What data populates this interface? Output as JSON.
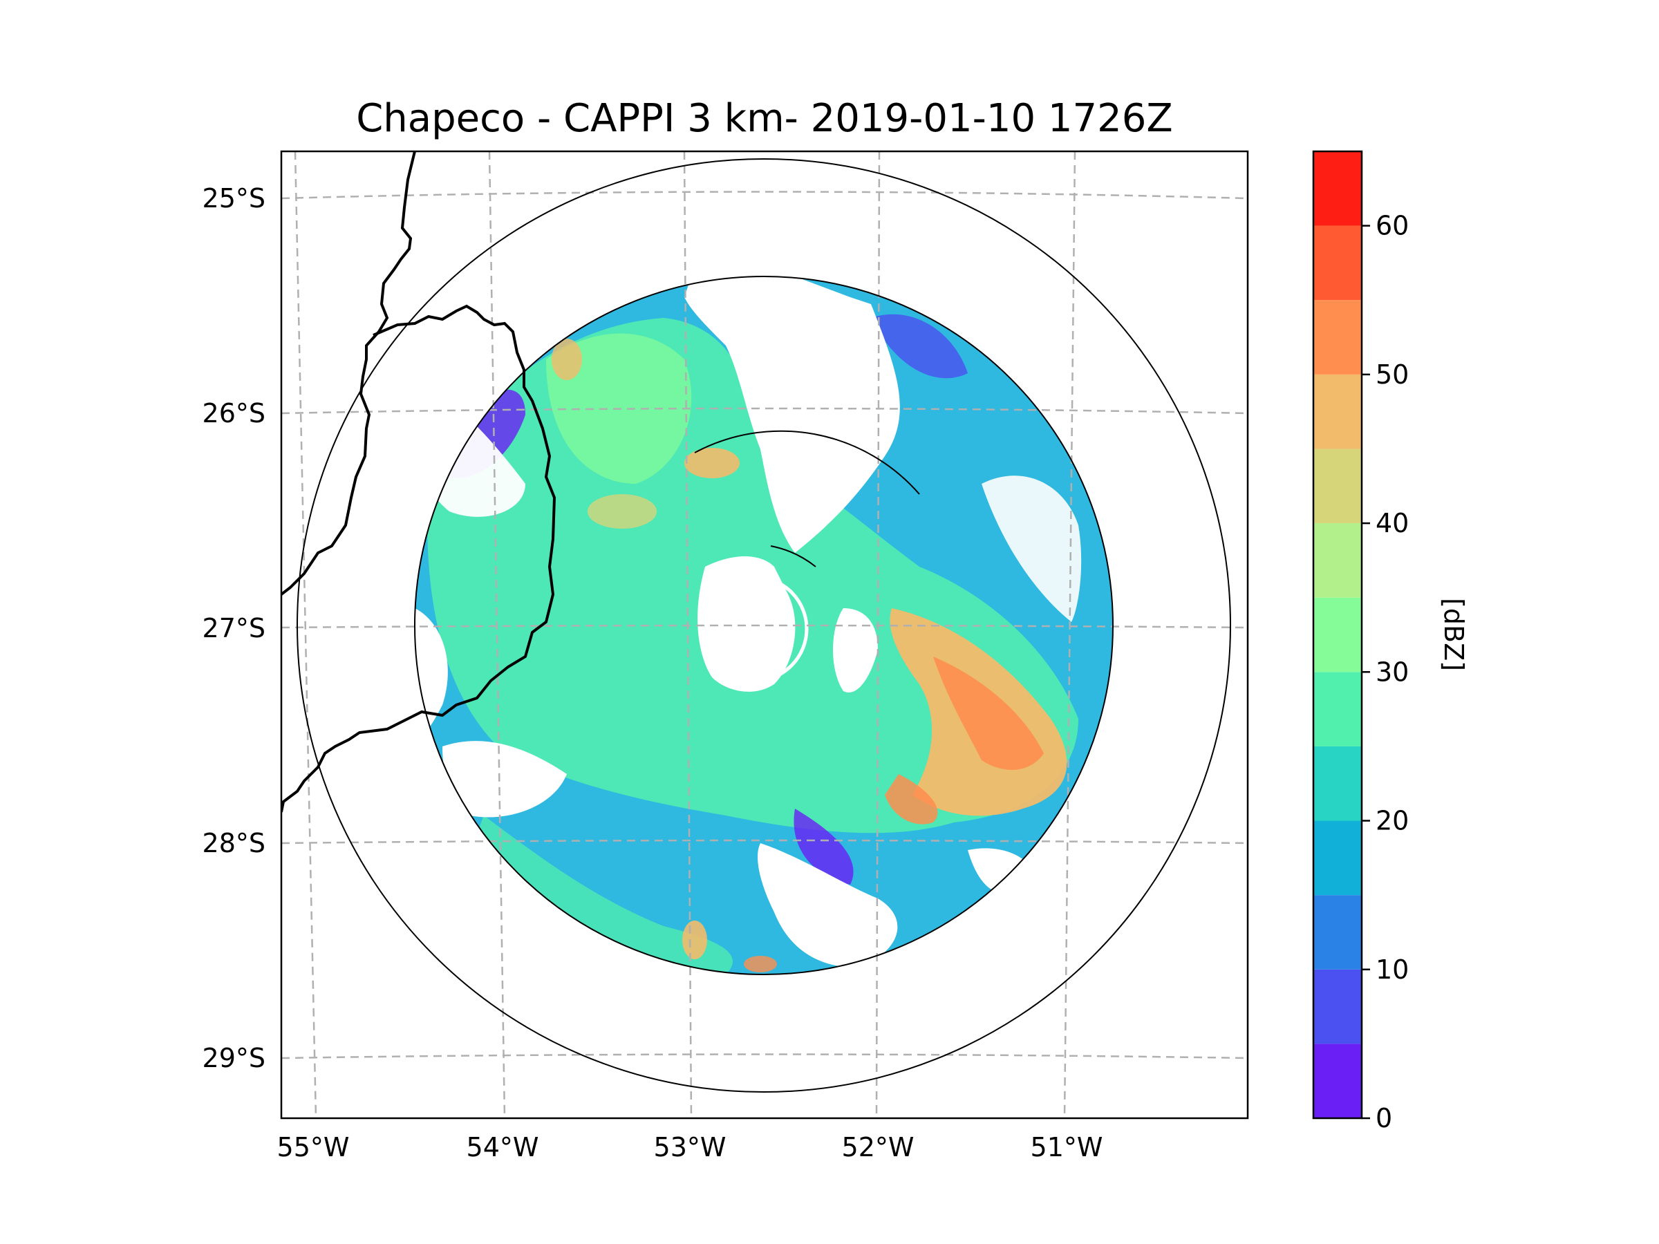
{
  "title": "Chapeco - CAPPI 3 km- 2019-01-10 1726Z",
  "map": {
    "lat_ticks": [
      "25°S",
      "26°S",
      "27°S",
      "28°S",
      "29°S"
    ],
    "lon_ticks": [
      "55°W",
      "54°W",
      "53°W",
      "52°W",
      "51°W"
    ],
    "gridlines": true,
    "range_rings": true
  },
  "colorbar": {
    "label": "[dBZ]",
    "tick_labels": [
      "0",
      "10",
      "20",
      "30",
      "40",
      "50",
      "60"
    ],
    "levels": [
      0,
      5,
      10,
      15,
      20,
      25,
      30,
      35,
      40,
      45,
      50,
      55,
      60,
      65
    ],
    "colors": [
      "#6a1ff5",
      "#4b50f0",
      "#2a82e6",
      "#10b0d8",
      "#28d4c4",
      "#52f0ad",
      "#86fc98",
      "#b1f08a",
      "#d6d57a",
      "#f2bb6c",
      "#ff8e4f",
      "#ff5a32",
      "#ff1e14"
    ]
  }
}
